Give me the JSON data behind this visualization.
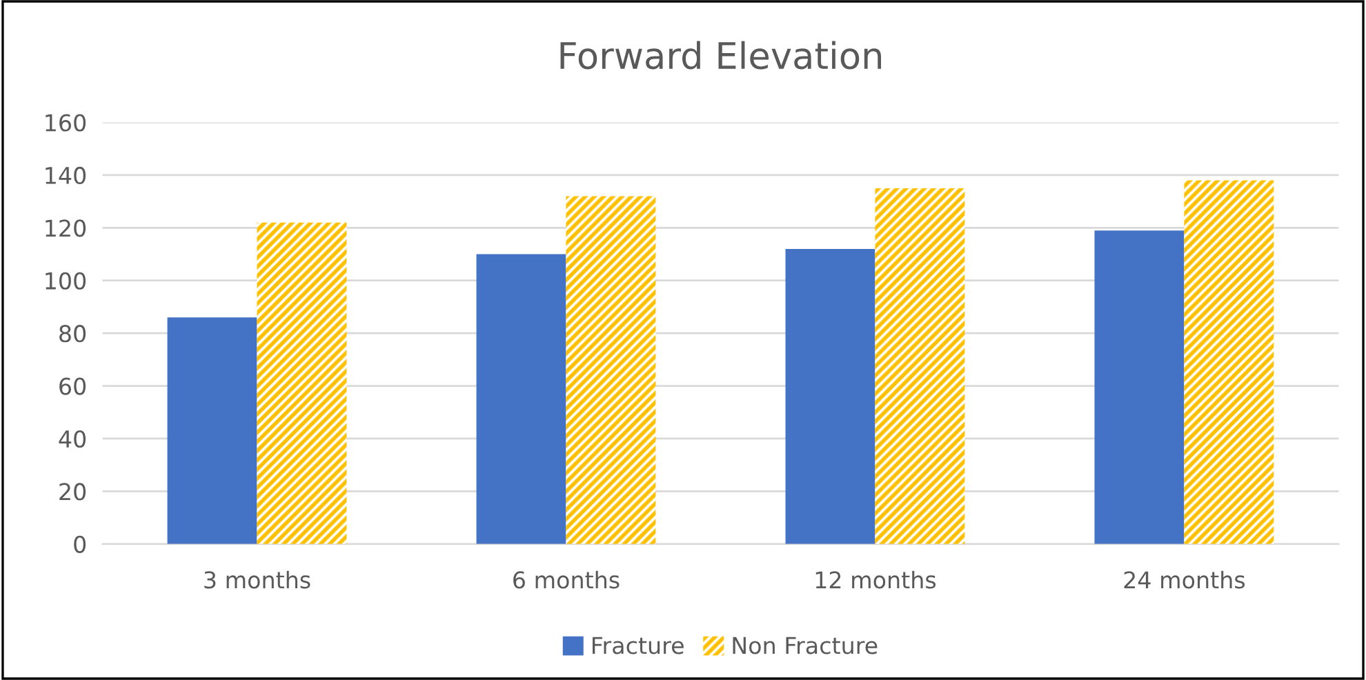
{
  "chart_data": {
    "type": "bar",
    "title": "Forward Elevation",
    "categories": [
      "3 months",
      "6 months",
      "12 months",
      "24 months"
    ],
    "series": [
      {
        "name": "Fracture",
        "color": "#4472c4",
        "values": [
          86,
          110,
          112,
          119
        ]
      },
      {
        "name": "Non Fracture",
        "color": "#ffc000",
        "values": [
          122,
          132,
          135,
          138
        ]
      }
    ],
    "ylim": [
      0,
      160
    ],
    "yticks": [
      0,
      20,
      40,
      60,
      80,
      100,
      120,
      140,
      160
    ],
    "grid": "y",
    "legend": "bottom"
  }
}
